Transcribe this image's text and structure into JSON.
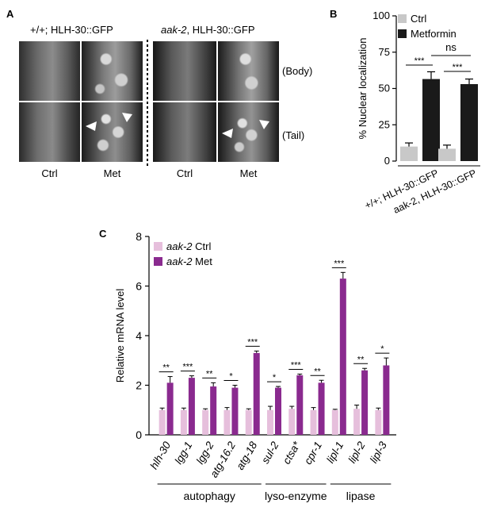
{
  "figure": {
    "panel_a": {
      "letter": "A",
      "group_left": {
        "prefix": "+/+",
        "rest": "; HLH-30::GFP"
      },
      "group_right": {
        "prefix": "aak-2",
        "rest": ", HLH-30::GFP"
      },
      "conditions": [
        "Ctrl",
        "Met",
        "Ctrl",
        "Met"
      ],
      "rows": [
        "(Body)",
        "(Tail)"
      ]
    },
    "panel_b": {
      "letter": "B"
    },
    "panel_c": {
      "letter": "C"
    }
  },
  "chart_data": [
    {
      "id": "B",
      "type": "bar",
      "ylabel": "% Nuclear localization",
      "ylim": [
        0,
        100
      ],
      "yticks": [
        0,
        25,
        50,
        75,
        100
      ],
      "groups": [
        "+/+; HLH-30::GFP",
        "aak-2, HLH-30::GFP"
      ],
      "series": [
        {
          "name": "Ctrl",
          "color": "#c8c8c8",
          "values": [
            10,
            8.5
          ],
          "errors": [
            2.5,
            2.5
          ]
        },
        {
          "name": "Metformin",
          "color": "#1a1a1a",
          "values": [
            56.5,
            53
          ],
          "errors": [
            5,
            3.5
          ]
        }
      ],
      "significance": [
        {
          "between": "Ctrl vs Metformin (group 1)",
          "label": "***"
        },
        {
          "between": "Ctrl vs Metformin (group 2)",
          "label": "***"
        },
        {
          "between": "Metformin group 1 vs group 2",
          "label": "ns"
        }
      ]
    },
    {
      "id": "C",
      "type": "bar",
      "ylabel": "Relative mRNA level",
      "ylim": [
        0,
        8
      ],
      "yticks": [
        0,
        2,
        4,
        6,
        8
      ],
      "categories": [
        "hlh-30",
        "lgg-1",
        "lgg-2",
        "atg-16.2",
        "atg-18",
        "sul-2",
        "ctsa*",
        "cpr-1",
        "lipl-1",
        "lipl-2",
        "lipl-3"
      ],
      "series": [
        {
          "name": "aak-2 Ctrl",
          "color": "#e6bfdc",
          "values": [
            1.0,
            1.0,
            1.0,
            1.0,
            1.0,
            1.0,
            1.05,
            1.0,
            1.0,
            1.05,
            1.0
          ],
          "errors": [
            0.08,
            0.08,
            0.05,
            0.1,
            0.05,
            0.15,
            0.1,
            0.1,
            0.03,
            0.15,
            0.08
          ]
        },
        {
          "name": "aak-2 Met",
          "color": "#8a2a8f",
          "values": [
            2.1,
            2.3,
            1.95,
            1.9,
            3.3,
            1.9,
            2.4,
            2.1,
            6.3,
            2.6,
            2.8
          ],
          "errors": [
            0.25,
            0.08,
            0.15,
            0.1,
            0.08,
            0.05,
            0.05,
            0.1,
            0.25,
            0.08,
            0.3
          ]
        }
      ],
      "significance": [
        "**",
        "***",
        "**",
        "*",
        "***",
        "*",
        "***",
        "**",
        "***",
        "**",
        "*"
      ],
      "category_groups": [
        {
          "label": "autophagy",
          "from": 0,
          "to": 4
        },
        {
          "label": "lyso-enzyme",
          "from": 5,
          "to": 7
        },
        {
          "label": "lipase",
          "from": 8,
          "to": 10
        }
      ]
    }
  ]
}
